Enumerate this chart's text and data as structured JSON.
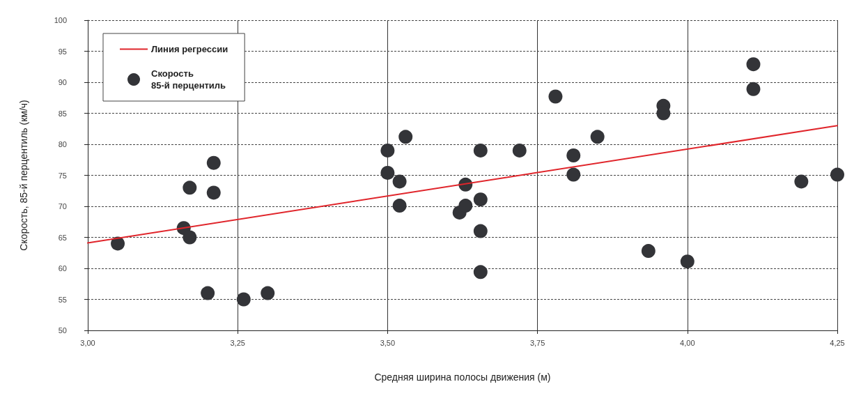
{
  "chart_data": {
    "type": "scatter",
    "xlabel": "Средняя ширина полосы движения (м)",
    "ylabel": "Скорость, 85-й перцентиль (км/ч)",
    "xlim": [
      3.0,
      4.25
    ],
    "xticks": [
      {
        "value": 3.0,
        "label": "3,00"
      },
      {
        "value": 3.25,
        "label": "3,25"
      },
      {
        "value": 3.5,
        "label": "3,50"
      },
      {
        "value": 3.75,
        "label": "3,75"
      },
      {
        "value": 4.0,
        "label": "4,00"
      },
      {
        "value": 4.25,
        "label": "4,25"
      }
    ],
    "ylim": [
      50,
      100
    ],
    "yticks": [
      50,
      55,
      60,
      65,
      70,
      75,
      80,
      85,
      90,
      95,
      100
    ],
    "grid": true,
    "legend": "top left",
    "marker": "circle",
    "series": [
      {
        "name": "Линия регрессии",
        "type": "line",
        "color": "#e0252b",
        "line_style": "solid",
        "marker": "none",
        "x": [
          3.0,
          4.25
        ],
        "values": [
          64.1,
          83.0
        ]
      },
      {
        "name": "Скорость\n85-й перцентиль",
        "color": "#333438",
        "x": [
          3.05,
          3.16,
          3.17,
          3.17,
          3.21,
          3.21,
          3.2,
          3.26,
          3.3,
          3.5,
          3.5,
          3.52,
          3.52,
          3.53,
          3.62,
          3.63,
          3.63,
          3.655,
          3.655,
          3.655,
          3.655,
          3.72,
          3.78,
          3.81,
          3.81,
          3.85,
          3.935,
          3.96,
          3.96,
          4.0,
          4.11,
          4.11,
          4.19,
          4.25
        ],
        "values": [
          64,
          66.5,
          73,
          65,
          77,
          72.2,
          56,
          55,
          56,
          79,
          75.4,
          74,
          70.1,
          81.2,
          69,
          73.5,
          70.1,
          79,
          71.1,
          66,
          59.4,
          79,
          87.7,
          78.2,
          75.1,
          81.2,
          62.8,
          86.2,
          85,
          61.1,
          92.9,
          88.9,
          74,
          75.1
        ]
      }
    ]
  }
}
